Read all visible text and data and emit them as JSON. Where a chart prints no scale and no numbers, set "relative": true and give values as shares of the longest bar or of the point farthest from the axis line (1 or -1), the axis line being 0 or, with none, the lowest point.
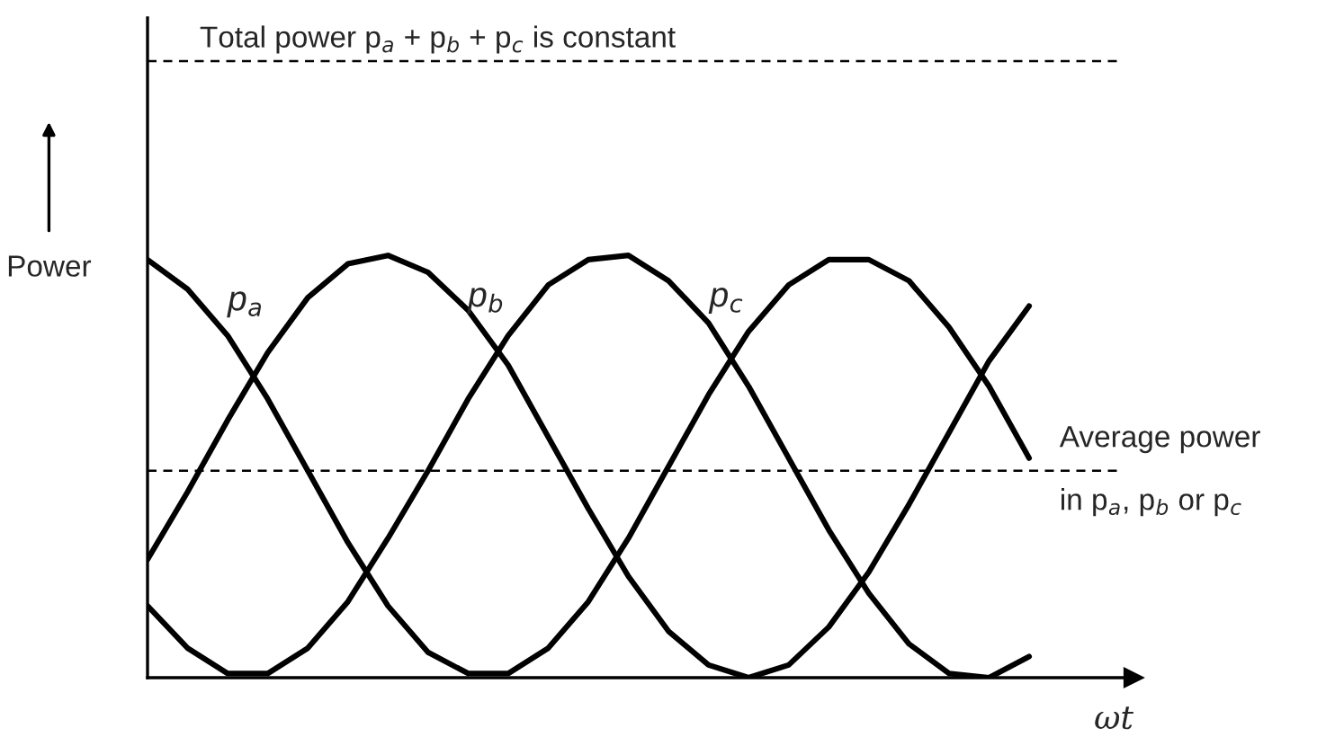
{
  "chart_data": {
    "type": "line",
    "relative": true,
    "xlabel": "ωt",
    "ylabel": "Power",
    "categories": [
      null,
      null,
      null,
      null,
      null,
      null,
      null,
      null,
      null,
      null,
      null,
      null,
      null,
      null,
      null,
      null,
      null,
      null,
      null,
      null,
      null,
      null,
      null
    ],
    "series": [
      {
        "name": "p$_{a}$",
        "color": "#000000",
        "values": [
          0.99,
          0.92,
          0.81,
          0.66,
          0.49,
          0.32,
          0.17,
          0.06,
          0.01,
          0.01,
          0.07,
          0.18,
          0.33,
          0.5,
          0.67,
          0.82,
          0.93,
          0.99,
          0.99,
          0.94,
          0.83,
          0.69,
          0.52
        ]
      },
      {
        "name": "p$_{b}$",
        "color": "#000000",
        "values": [
          0.28,
          0.44,
          0.61,
          0.77,
          0.9,
          0.98,
          1.0,
          0.96,
          0.87,
          0.74,
          0.57,
          0.4,
          0.24,
          0.11,
          0.03,
          0.0,
          0.03,
          0.12,
          0.25,
          0.41,
          0.58,
          0.75,
          0.88
        ]
      },
      {
        "name": "p$_{c}$",
        "color": "#000000",
        "values": [
          0.17,
          0.07,
          0.01,
          0.01,
          0.07,
          0.18,
          0.33,
          0.49,
          0.66,
          0.81,
          0.93,
          0.99,
          1.0,
          0.94,
          0.84,
          0.69,
          0.52,
          0.35,
          0.2,
          0.08,
          0.01,
          0.0,
          0.05
        ]
      }
    ],
    "ref_lines": [
      {
        "axis": "y",
        "value": 1.46,
        "label": "Total power p$_{a}$ + p$_{b}$ + p$_{c}$ is constant",
        "line_style": "dashed",
        "color": "#000000"
      },
      {
        "axis": "y",
        "value": 0.49,
        "label": "Average power\nin p$_{a}$, p$_{b}$ or p$_{c}$",
        "line_style": "dashed",
        "color": "#000000"
      }
    ],
    "line_style": "solid",
    "marker": "none"
  }
}
